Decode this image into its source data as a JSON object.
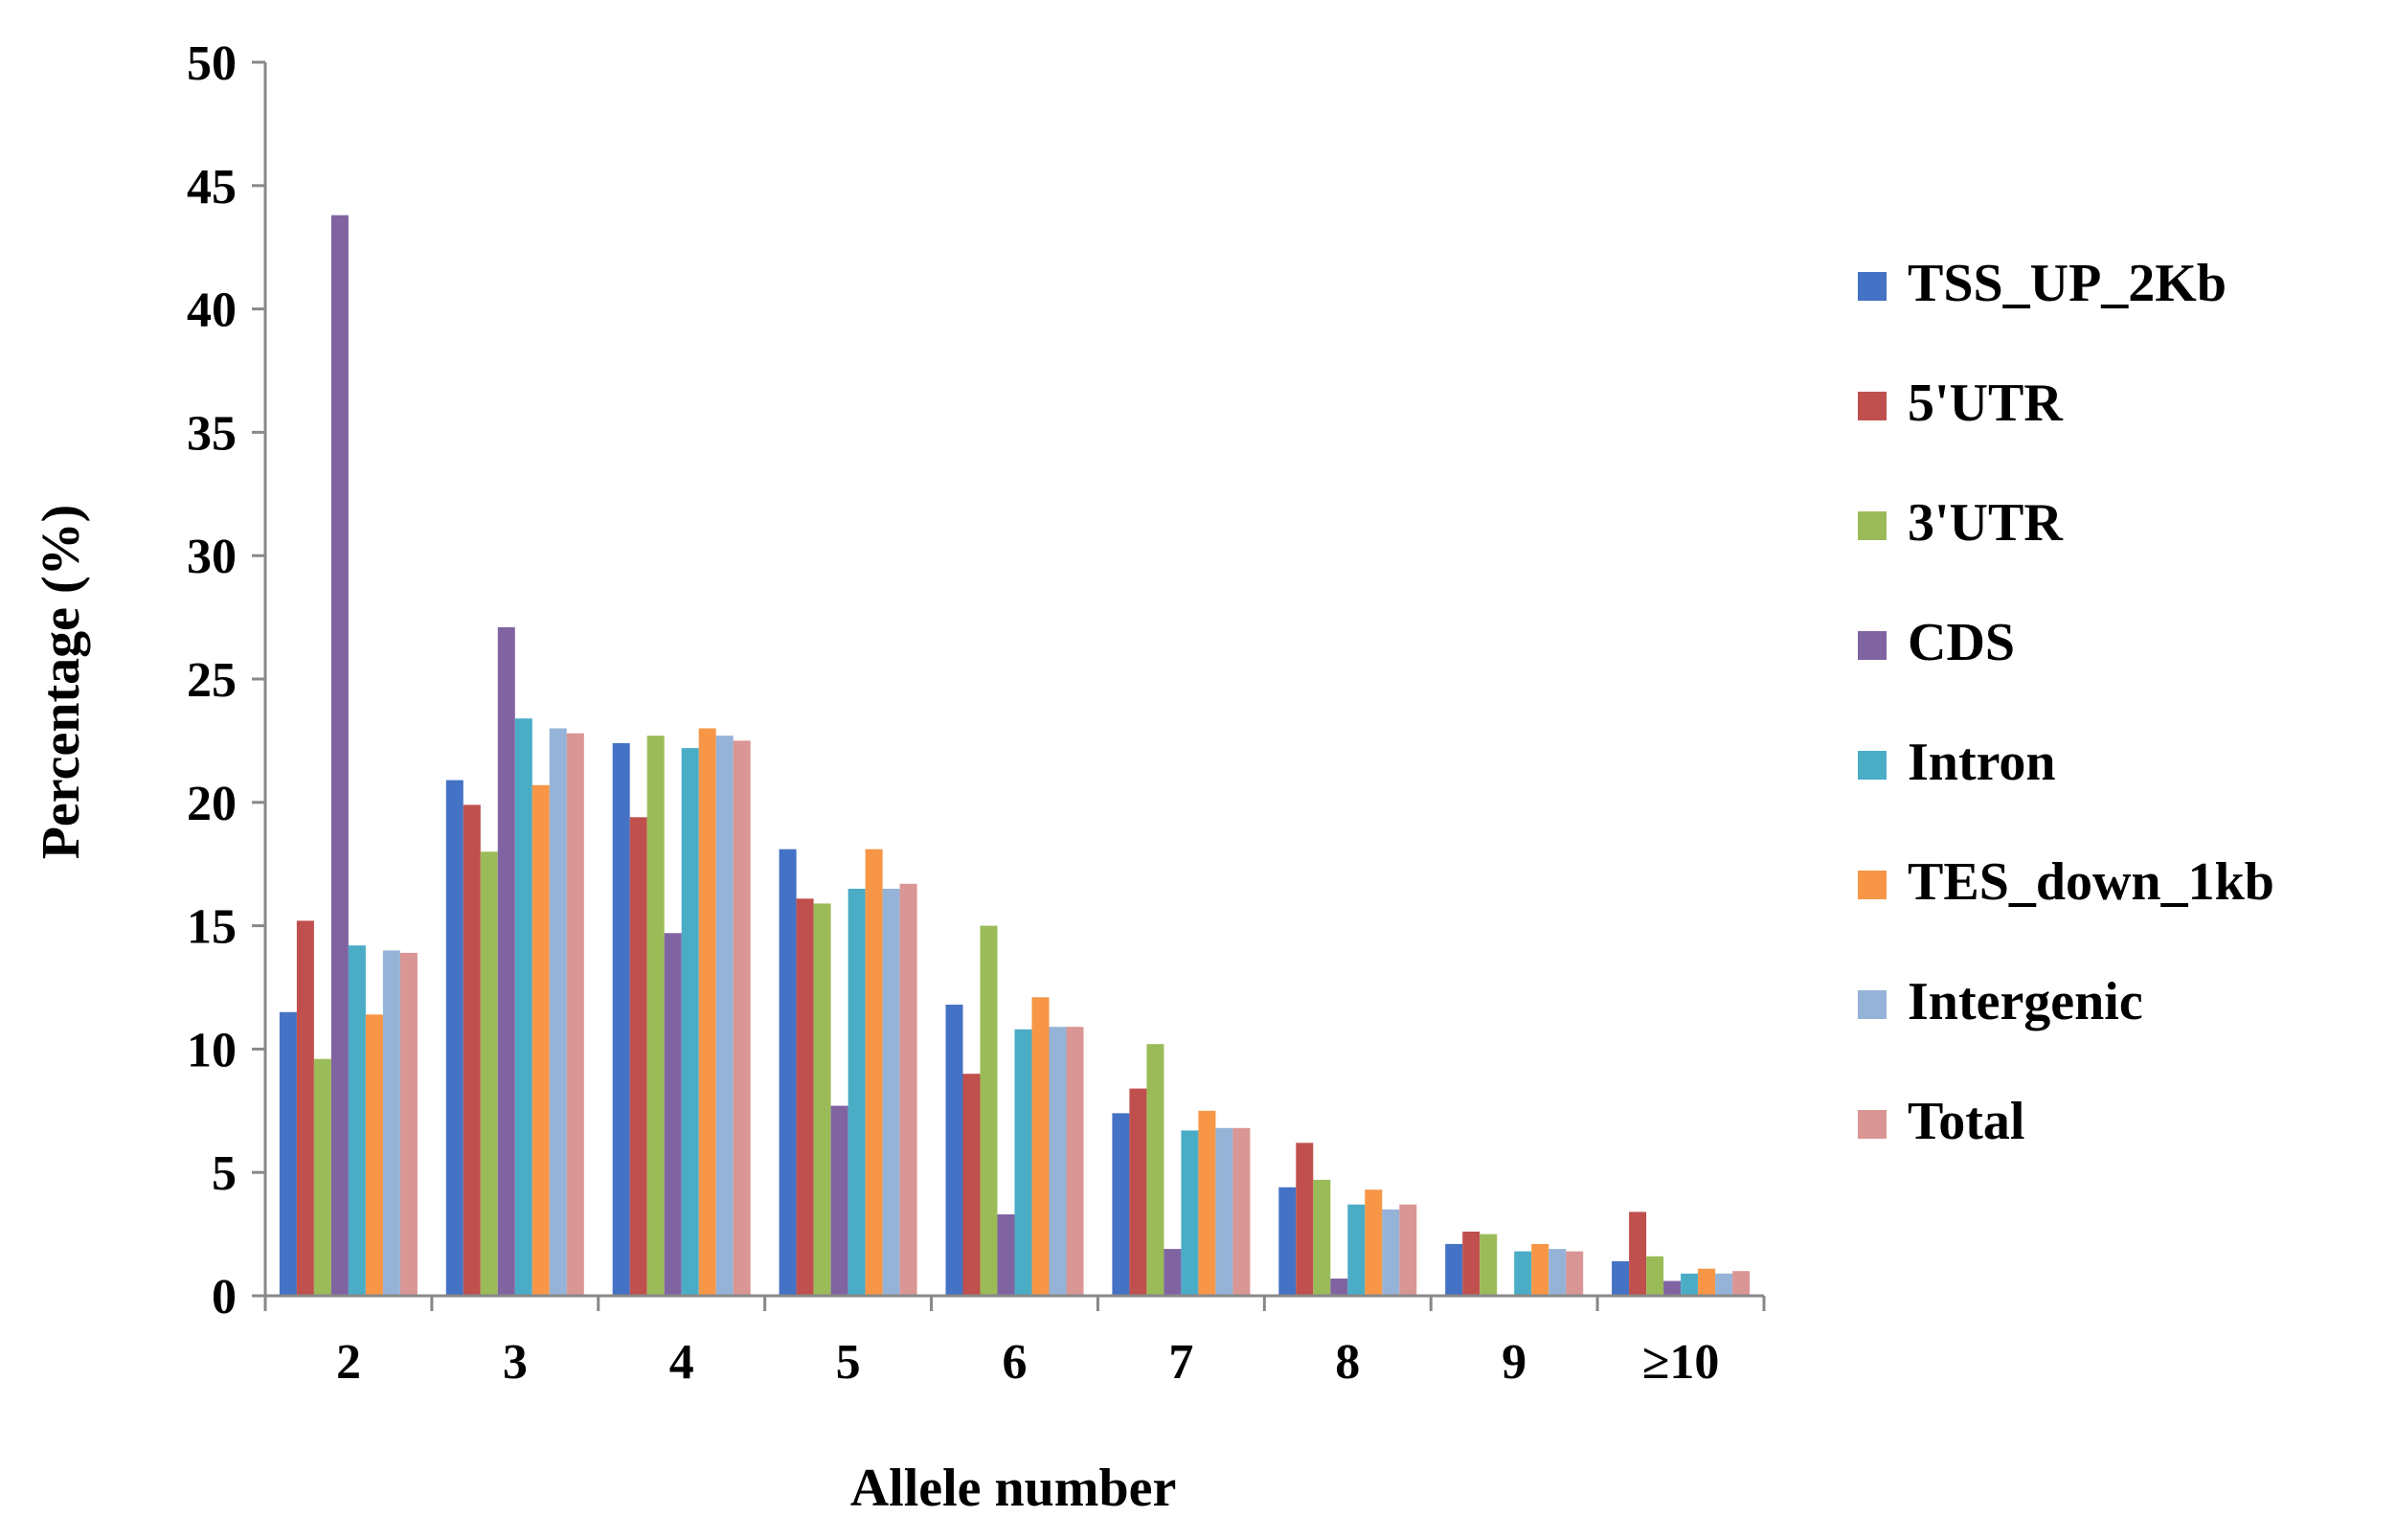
{
  "chart_data": {
    "type": "bar",
    "title": "",
    "xlabel": "Allele number",
    "ylabel": "Percentage (%)",
    "ylim": [
      0,
      50
    ],
    "yticks": [
      0,
      5,
      10,
      15,
      20,
      25,
      30,
      35,
      40,
      45,
      50
    ],
    "ytick_labels": [
      "0",
      "5",
      "10",
      "15",
      "20",
      "25",
      "30",
      "35",
      "40",
      "45",
      "50"
    ],
    "grid": false,
    "legend_position": "right",
    "categories": [
      "2",
      "3",
      "4",
      "5",
      "6",
      "7",
      "8",
      "9",
      "≥10"
    ],
    "series": [
      {
        "name": "TSS_UP_2Kb",
        "color": "#4472C4",
        "values": [
          11.5,
          20.9,
          22.4,
          18.1,
          11.8,
          7.4,
          4.4,
          2.1,
          1.4
        ]
      },
      {
        "name": "5'UTR",
        "color": "#C0504D",
        "values": [
          15.2,
          19.9,
          19.4,
          16.1,
          9.0,
          8.4,
          6.2,
          2.6,
          3.4
        ]
      },
      {
        "name": "3'UTR",
        "color": "#9BBB59",
        "values": [
          9.6,
          18.0,
          22.7,
          15.9,
          15.0,
          10.2,
          4.7,
          2.5,
          1.6
        ]
      },
      {
        "name": "CDS",
        "color": "#8064A2",
        "values": [
          43.8,
          27.1,
          14.7,
          7.7,
          3.3,
          1.9,
          0.7,
          0.0,
          0.6
        ]
      },
      {
        "name": "Intron",
        "color": "#4BACC6",
        "values": [
          14.2,
          23.4,
          22.2,
          16.5,
          10.8,
          6.7,
          3.7,
          1.8,
          0.9
        ]
      },
      {
        "name": "TES_down_1kb",
        "color": "#F79646",
        "values": [
          11.4,
          20.7,
          23.0,
          18.1,
          12.1,
          7.5,
          4.3,
          2.1,
          1.1
        ]
      },
      {
        "name": "Intergenic",
        "color": "#95B3D7",
        "values": [
          14.0,
          23.0,
          22.7,
          16.5,
          10.9,
          6.8,
          3.5,
          1.9,
          0.9
        ]
      },
      {
        "name": "Total",
        "color": "#D99694",
        "values": [
          13.9,
          22.8,
          22.5,
          16.7,
          10.9,
          6.8,
          3.7,
          1.8,
          1.0
        ]
      }
    ]
  }
}
